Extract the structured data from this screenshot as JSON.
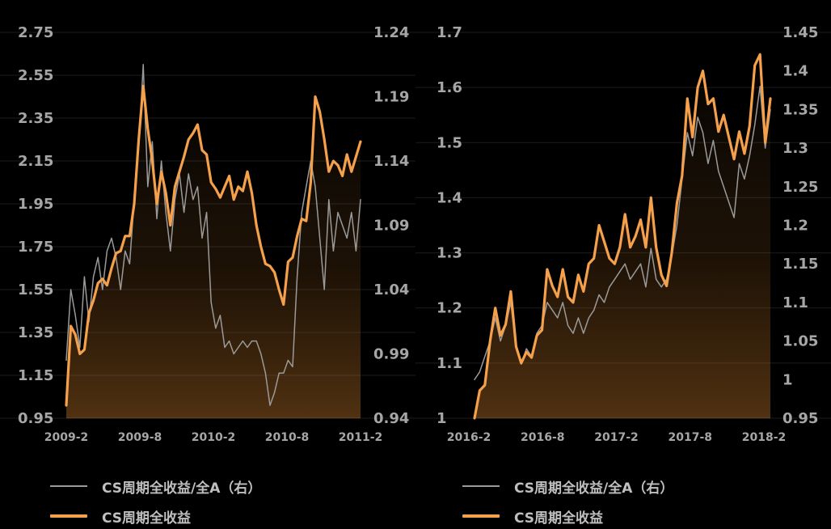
{
  "chart_data": [
    {
      "type": "line",
      "x_ticks": [
        "2009-2",
        "2009-8",
        "2010-2",
        "2010-8",
        "2011-2"
      ],
      "y_left": {
        "ticks": [
          "2.75",
          "2.55",
          "2.35",
          "2.15",
          "1.95",
          "1.75",
          "1.55",
          "1.35",
          "1.15",
          "0.95"
        ],
        "range": [
          0.95,
          2.75
        ]
      },
      "y_right": {
        "ticks": [
          "1.24",
          "1.19",
          "1.14",
          "1.09",
          "1.04",
          "0.99",
          "0.94"
        ],
        "range": [
          0.94,
          1.24
        ]
      },
      "series": [
        {
          "name": "CS周期全收益",
          "axis": "left",
          "color": "#f5a04a",
          "fill": true,
          "values": [
            1.01,
            1.38,
            1.34,
            1.25,
            1.27,
            1.44,
            1.5,
            1.58,
            1.6,
            1.57,
            1.65,
            1.72,
            1.73,
            1.8,
            1.8,
            1.95,
            2.25,
            2.5,
            2.3,
            2.15,
            1.95,
            2.1,
            2.0,
            1.85,
            2.03,
            2.1,
            2.17,
            2.25,
            2.28,
            2.32,
            2.2,
            2.18,
            2.05,
            2.02,
            1.98,
            2.03,
            2.08,
            1.97,
            2.03,
            2.01,
            2.1,
            2.0,
            1.85,
            1.75,
            1.67,
            1.66,
            1.63,
            1.55,
            1.48,
            1.68,
            1.7,
            1.8,
            1.88,
            1.87,
            2.05,
            2.45,
            2.38,
            2.25,
            2.1,
            2.15,
            2.13,
            2.08,
            2.18,
            2.1,
            2.17,
            2.24
          ]
        },
        {
          "name": "CS周期全收益/全A（右）",
          "axis": "right",
          "color": "#9a9a9a",
          "fill": false,
          "values": [
            0.985,
            1.04,
            1.02,
            0.995,
            1.05,
            1.015,
            1.05,
            1.065,
            1.04,
            1.07,
            1.08,
            1.065,
            1.04,
            1.07,
            1.06,
            1.11,
            1.15,
            1.215,
            1.12,
            1.155,
            1.095,
            1.14,
            1.1,
            1.07,
            1.11,
            1.13,
            1.1,
            1.13,
            1.11,
            1.12,
            1.08,
            1.1,
            1.03,
            1.01,
            1.02,
            0.995,
            1.0,
            0.99,
            0.995,
            1.0,
            0.995,
            1.0,
            1.0,
            0.99,
            0.975,
            0.95,
            0.96,
            0.975,
            0.975,
            0.985,
            0.98,
            1.05,
            1.1,
            1.12,
            1.14,
            1.12,
            1.08,
            1.04,
            1.11,
            1.07,
            1.1,
            1.09,
            1.08,
            1.1,
            1.07,
            1.11
          ]
        }
      ],
      "legend": [
        "CS周期全收益/全A（右）",
        "CS周期全收益"
      ],
      "legend_position": "bottom"
    },
    {
      "type": "line",
      "x_ticks": [
        "2016-2",
        "2016-8",
        "2017-2",
        "2017-8",
        "2018-2"
      ],
      "y_left": {
        "ticks": [
          "1.7",
          "1.6",
          "1.5",
          "1.4",
          "1.3",
          "1.2",
          "1.1",
          "1"
        ],
        "range": [
          1.0,
          1.7
        ]
      },
      "y_right": {
        "ticks": [
          "1.45",
          "1.4",
          "1.35",
          "1.3",
          "1.25",
          "1.2",
          "1.15",
          "1.1",
          "1.05",
          "1",
          "0.95"
        ],
        "range": [
          0.95,
          1.45
        ]
      },
      "series": [
        {
          "name": "CS周期全收益",
          "axis": "left",
          "color": "#f5a04a",
          "fill": true,
          "values": [
            1.0,
            1.05,
            1.06,
            1.14,
            1.2,
            1.15,
            1.17,
            1.23,
            1.13,
            1.1,
            1.12,
            1.11,
            1.15,
            1.16,
            1.27,
            1.24,
            1.22,
            1.27,
            1.22,
            1.21,
            1.26,
            1.23,
            1.28,
            1.29,
            1.35,
            1.32,
            1.29,
            1.28,
            1.31,
            1.37,
            1.31,
            1.33,
            1.36,
            1.31,
            1.4,
            1.31,
            1.26,
            1.24,
            1.3,
            1.39,
            1.44,
            1.58,
            1.51,
            1.6,
            1.63,
            1.57,
            1.58,
            1.52,
            1.55,
            1.51,
            1.47,
            1.52,
            1.48,
            1.53,
            1.64,
            1.66,
            1.5,
            1.58
          ]
        },
        {
          "name": "CS周期全收益/全A（右）",
          "axis": "right",
          "color": "#9a9a9a",
          "fill": false,
          "values": [
            1.0,
            1.01,
            1.03,
            1.05,
            1.08,
            1.05,
            1.07,
            1.1,
            1.04,
            1.02,
            1.04,
            1.03,
            1.06,
            1.07,
            1.1,
            1.09,
            1.08,
            1.1,
            1.07,
            1.06,
            1.08,
            1.06,
            1.08,
            1.09,
            1.11,
            1.1,
            1.12,
            1.13,
            1.14,
            1.15,
            1.13,
            1.14,
            1.15,
            1.12,
            1.17,
            1.13,
            1.12,
            1.13,
            1.16,
            1.2,
            1.26,
            1.32,
            1.29,
            1.34,
            1.32,
            1.28,
            1.31,
            1.27,
            1.25,
            1.23,
            1.21,
            1.28,
            1.26,
            1.29,
            1.33,
            1.38,
            1.3,
            1.35
          ]
        }
      ],
      "legend": [
        "CS周期全收益/全A（右）",
        "CS周期全收益"
      ],
      "legend_position": "bottom"
    }
  ]
}
